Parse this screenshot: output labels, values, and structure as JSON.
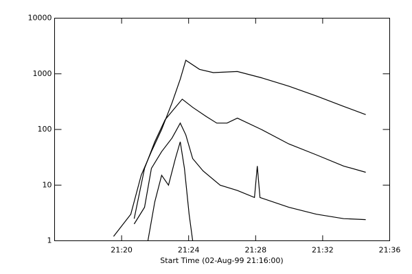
{
  "chart_data": {
    "type": "line",
    "xlabel": "Start Time (02-Aug-99 21:16:00)",
    "log_y": true,
    "ylim": [
      1,
      10000
    ],
    "yticks": [
      1,
      10,
      100,
      1000,
      10000
    ],
    "xlim": [
      1276,
      1296
    ],
    "xticks": [
      {
        "value": 1280,
        "label": "21:20"
      },
      {
        "value": 1284,
        "label": "21:24"
      },
      {
        "value": 1288,
        "label": "21:28"
      },
      {
        "value": 1292,
        "label": "21:32"
      },
      {
        "value": 1296,
        "label": "21:36"
      }
    ],
    "series": [
      {
        "color": "#000000",
        "x": [
          1279.52,
          1280.55,
          1281.17,
          1281.78,
          1282.39,
          1283.01,
          1283.5,
          1283.83,
          1284.65,
          1285.47,
          1286.91,
          1288.34,
          1289.98,
          1291.62,
          1293.25,
          1294.57
        ],
        "values": [
          1.2,
          3,
          15,
          40,
          100,
          300,
          800,
          1750,
          1200,
          1050,
          1100,
          850,
          600,
          400,
          260,
          185
        ]
      },
      {
        "color": "#000000",
        "x": [
          1280.75,
          1281.37,
          1281.98,
          1282.6,
          1283.21,
          1283.62,
          1284.24,
          1285.06,
          1285.68,
          1286.29,
          1286.91,
          1288.34,
          1289.98,
          1291.62,
          1293.25,
          1294.57
        ],
        "values": [
          2.5,
          20,
          60,
          150,
          250,
          350,
          250,
          170,
          130,
          130,
          160,
          100,
          55,
          35,
          22,
          17
        ]
      },
      {
        "color": "#000000",
        "x": [
          1280.75,
          1281.37,
          1281.78,
          1282.39,
          1283.01,
          1283.5,
          1283.83,
          1284.24,
          1284.86,
          1285.88,
          1286.91,
          1287.93,
          1288.1,
          1288.26,
          1289.98,
          1291.62,
          1293.25,
          1294.57
        ],
        "values": [
          2,
          4,
          20,
          40,
          70,
          130,
          80,
          30,
          18,
          10,
          8,
          6,
          22,
          6,
          4,
          3,
          2.5,
          2.4
        ]
      },
      {
        "color": "#000000",
        "x": [
          1281.57,
          1281.98,
          1282.39,
          1282.8,
          1283.21,
          1283.5,
          1283.75,
          1284.03,
          1284.24
        ],
        "values": [
          1,
          5,
          15,
          10,
          30,
          60,
          20,
          3,
          1
        ]
      }
    ]
  }
}
